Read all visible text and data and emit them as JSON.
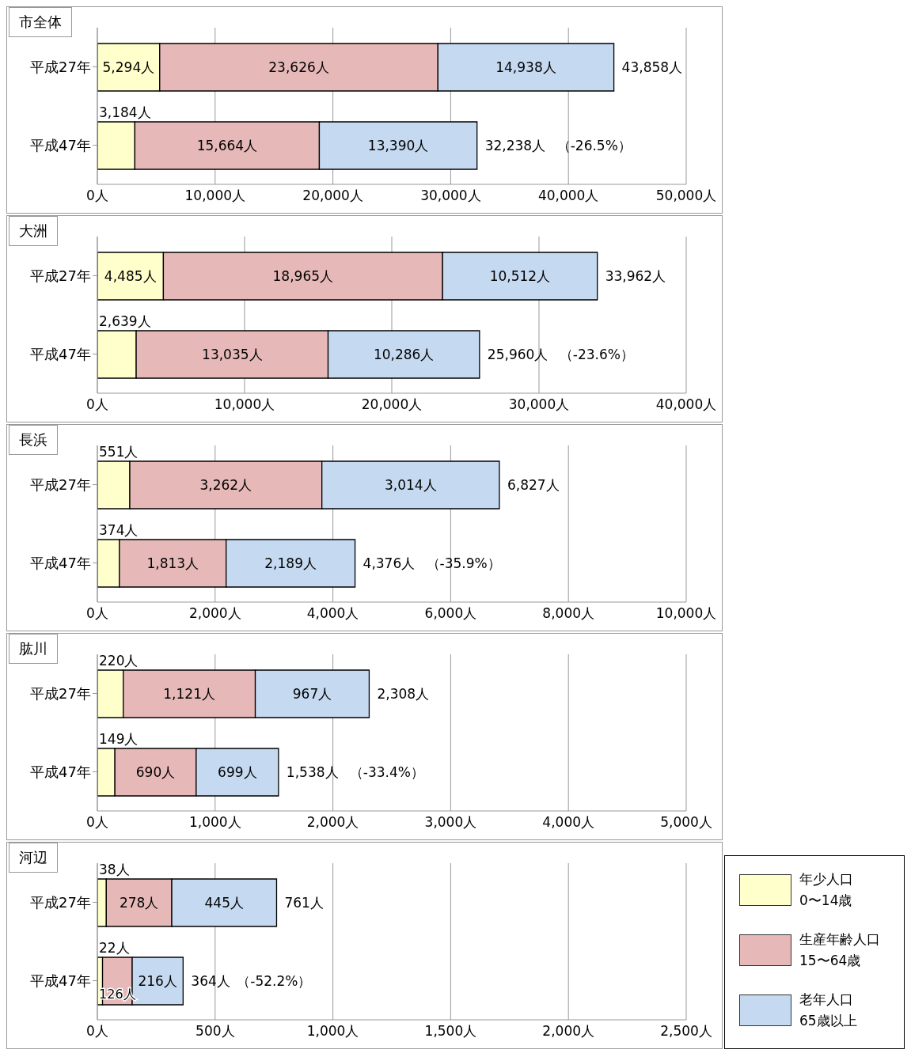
{
  "chart_data": [
    {
      "type": "bar",
      "orientation": "horizontal",
      "stacked": true,
      "title": "市全体",
      "categories": [
        "平成27年",
        "平成47年"
      ],
      "grid": "x",
      "legend": false,
      "series": [
        {
          "color": "#ffffcc",
          "values": [
            5294,
            3184
          ],
          "value_labels": [
            "5,294人",
            "3,184人"
          ]
        },
        {
          "color": "#e6b9b8",
          "values": [
            23626,
            15664
          ],
          "value_labels": [
            "23,626人",
            "15,664人"
          ]
        },
        {
          "color": "#c5d9f1",
          "values": [
            14938,
            13390
          ],
          "value_labels": [
            "14,938人",
            "13,390人"
          ]
        }
      ],
      "totals": [
        "43,858人",
        "32,238人"
      ],
      "annotations": [
        "（-26.5%）"
      ],
      "xlim": [
        0,
        50000
      ],
      "xticks": [
        {
          "value": 0,
          "label": "0人"
        },
        {
          "value": 10000,
          "label": "10,000人"
        },
        {
          "value": 20000,
          "label": "20,000人"
        },
        {
          "value": 30000,
          "label": "30,000人"
        },
        {
          "value": 40000,
          "label": "40,000人"
        },
        {
          "value": 50000,
          "label": "50,000人"
        }
      ]
    },
    {
      "type": "bar",
      "orientation": "horizontal",
      "stacked": true,
      "title": "大洲",
      "categories": [
        "平成27年",
        "平成47年"
      ],
      "grid": "x",
      "legend": false,
      "series": [
        {
          "color": "#ffffcc",
          "values": [
            4485,
            2639
          ],
          "value_labels": [
            "4,485人",
            "2,639人"
          ]
        },
        {
          "color": "#e6b9b8",
          "values": [
            18965,
            13035
          ],
          "value_labels": [
            "18,965人",
            "13,035人"
          ]
        },
        {
          "color": "#c5d9f1",
          "values": [
            10512,
            10286
          ],
          "value_labels": [
            "10,512人",
            "10,286人"
          ]
        }
      ],
      "totals": [
        "33,962人",
        "25,960人"
      ],
      "annotations": [
        "（-23.6%）"
      ],
      "xlim": [
        0,
        40000
      ],
      "xticks": [
        {
          "value": 0,
          "label": "0人"
        },
        {
          "value": 10000,
          "label": "10,000人"
        },
        {
          "value": 20000,
          "label": "20,000人"
        },
        {
          "value": 30000,
          "label": "30,000人"
        },
        {
          "value": 40000,
          "label": "40,000人"
        }
      ]
    },
    {
      "type": "bar",
      "orientation": "horizontal",
      "stacked": true,
      "title": "長浜",
      "categories": [
        "平成27年",
        "平成47年"
      ],
      "grid": "x",
      "legend": false,
      "series": [
        {
          "color": "#ffffcc",
          "values": [
            551,
            374
          ],
          "value_labels": [
            "551人",
            "374人"
          ]
        },
        {
          "color": "#e6b9b8",
          "values": [
            3262,
            1813
          ],
          "value_labels": [
            "3,262人",
            "1,813人"
          ]
        },
        {
          "color": "#c5d9f1",
          "values": [
            3014,
            2189
          ],
          "value_labels": [
            "3,014人",
            "2,189人"
          ]
        }
      ],
      "totals": [
        "6,827人",
        "4,376人"
      ],
      "annotations": [
        "（-35.9%）"
      ],
      "xlim": [
        0,
        10000
      ],
      "xticks": [
        {
          "value": 0,
          "label": "0人"
        },
        {
          "value": 2000,
          "label": "2,000人"
        },
        {
          "value": 4000,
          "label": "4,000人"
        },
        {
          "value": 6000,
          "label": "6,000人"
        },
        {
          "value": 8000,
          "label": "8,000人"
        },
        {
          "value": 10000,
          "label": "10,000人"
        }
      ]
    },
    {
      "type": "bar",
      "orientation": "horizontal",
      "stacked": true,
      "title": "肱川",
      "categories": [
        "平成27年",
        "平成47年"
      ],
      "grid": "x",
      "legend": false,
      "series": [
        {
          "color": "#ffffcc",
          "values": [
            220,
            149
          ],
          "value_labels": [
            "220人",
            "149人"
          ]
        },
        {
          "color": "#e6b9b8",
          "values": [
            1121,
            690
          ],
          "value_labels": [
            "1,121人",
            "690人"
          ]
        },
        {
          "color": "#c5d9f1",
          "values": [
            967,
            699
          ],
          "value_labels": [
            "967人",
            "699人"
          ]
        }
      ],
      "totals": [
        "2,308人",
        "1,538人"
      ],
      "annotations": [
        "（-33.4%）"
      ],
      "xlim": [
        0,
        5000
      ],
      "xticks": [
        {
          "value": 0,
          "label": "0人"
        },
        {
          "value": 1000,
          "label": "1,000人"
        },
        {
          "value": 2000,
          "label": "2,000人"
        },
        {
          "value": 3000,
          "label": "3,000人"
        },
        {
          "value": 4000,
          "label": "4,000人"
        },
        {
          "value": 5000,
          "label": "5,000人"
        }
      ]
    },
    {
      "type": "bar",
      "orientation": "horizontal",
      "stacked": true,
      "title": "河辺",
      "categories": [
        "平成27年",
        "平成47年"
      ],
      "grid": "x",
      "legend": "right",
      "series": [
        {
          "name": "年少人口\n0〜14歳",
          "color": "#ffffcc",
          "values": [
            38,
            22
          ],
          "value_labels": [
            "38人",
            "22人"
          ]
        },
        {
          "name": "生産年齢人口\n15〜64歳",
          "color": "#e6b9b8",
          "values": [
            278,
            126
          ],
          "value_labels": [
            "278人",
            "126人"
          ]
        },
        {
          "name": "老年人口\n65歳以上",
          "color": "#c5d9f1",
          "values": [
            445,
            216
          ],
          "value_labels": [
            "445人",
            "216人"
          ]
        }
      ],
      "totals": [
        "761人",
        "364人"
      ],
      "annotations": [
        "（-52.2%）"
      ],
      "xlim": [
        0,
        2500
      ],
      "xticks": [
        {
          "value": 0,
          "label": "0人"
        },
        {
          "value": 500,
          "label": "500人"
        },
        {
          "value": 1000,
          "label": "1,000人"
        },
        {
          "value": 1500,
          "label": "1,500人"
        },
        {
          "value": 2000,
          "label": "2,000人"
        },
        {
          "value": 2500,
          "label": "2,500人"
        }
      ]
    }
  ]
}
